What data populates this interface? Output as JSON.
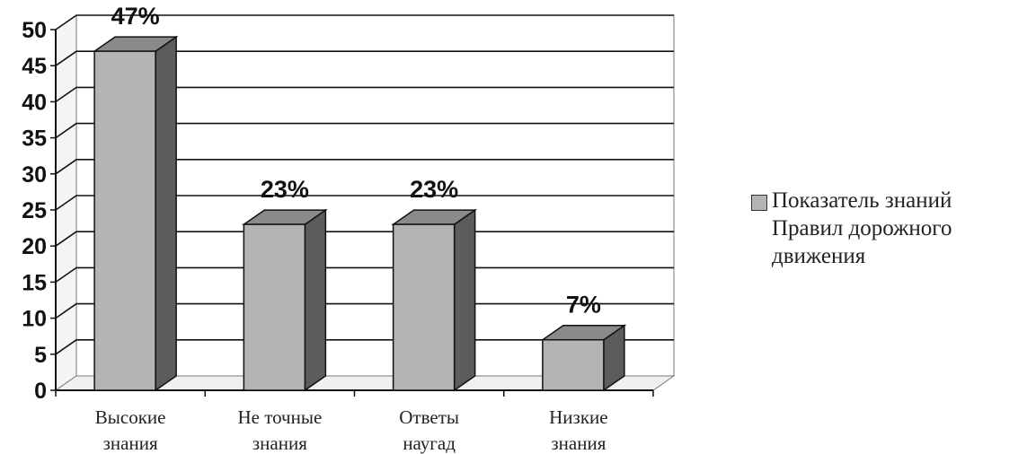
{
  "chart_data": {
    "type": "bar",
    "categories": [
      [
        "Высокие",
        "знания"
      ],
      [
        "Не точные",
        "знания"
      ],
      [
        "Ответы",
        "наугад"
      ],
      [
        "Низкие",
        "знания"
      ]
    ],
    "series": [
      {
        "name": "Показатель знаний Правил дорожного движения",
        "values": [
          47,
          23,
          23,
          7
        ]
      }
    ],
    "data_labels": [
      "47%",
      "23%",
      "23%",
      "7%"
    ],
    "yticks": [
      0,
      5,
      10,
      15,
      20,
      25,
      30,
      35,
      40,
      45,
      50
    ],
    "ylim": [
      0,
      50
    ],
    "grid": true,
    "style": "3d",
    "legend_position": "right",
    "colors": {
      "bar_front": "#b4b4b4",
      "bar_side": "#5c5c5c",
      "bar_top": "#8a8a8a",
      "grid": "#111111"
    }
  },
  "legend": {
    "lines": [
      "Показатель знаний",
      "Правил дорожного",
      "движения"
    ]
  }
}
